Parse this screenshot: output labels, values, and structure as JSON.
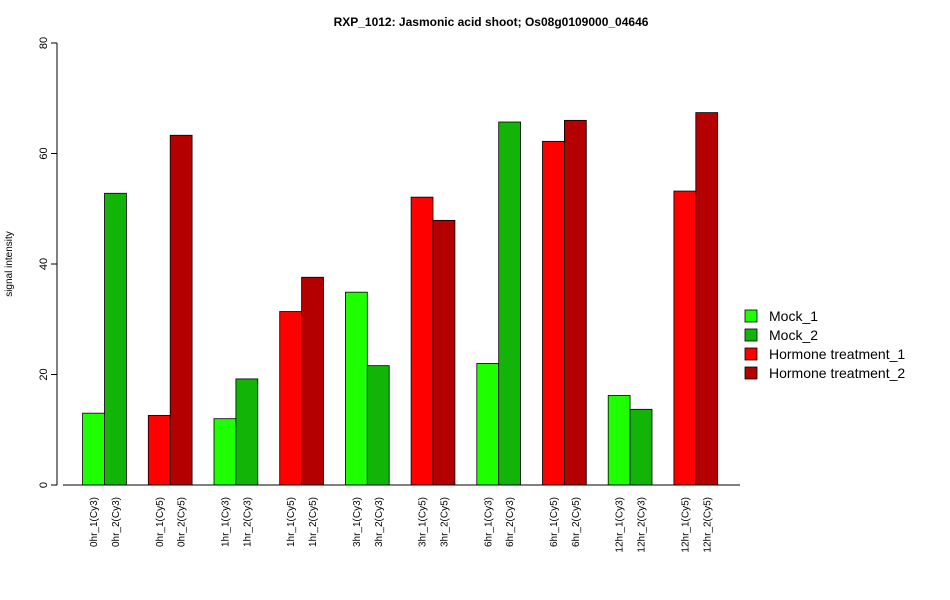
{
  "chart_data": {
    "type": "bar",
    "title": "RXP_1012: Jasmonic acid shoot; Os08g0109000_04646",
    "ylabel": "signal intensity",
    "xlabel": "",
    "ylim": [
      0,
      80
    ],
    "yticks": [
      0,
      20,
      40,
      60,
      80
    ],
    "grid": false,
    "legend_position": "right",
    "categories": [
      "0hr_1(Cy3)",
      "0hr_2(Cy3)",
      "0hr_1(Cy5)",
      "0hr_2(Cy5)",
      "1hr_1(Cy3)",
      "1hr_2(Cy3)",
      "1hr_1(Cy5)",
      "1hr_2(Cy5)",
      "3hr_1(Cy3)",
      "3hr_2(Cy3)",
      "3hr_1(Cy5)",
      "3hr_2(Cy5)",
      "6hr_1(Cy3)",
      "6hr_2(Cy3)",
      "6hr_1(Cy5)",
      "6hr_2(Cy5)",
      "12hr_1(Cy3)",
      "12hr_2(Cy3)",
      "12hr_1(Cy5)",
      "12hr_2(Cy5)"
    ],
    "values": [
      13.0,
      52.8,
      12.6,
      63.3,
      12.0,
      19.2,
      31.4,
      37.6,
      34.9,
      21.6,
      52.1,
      47.9,
      22.0,
      65.7,
      62.2,
      66.0,
      16.2,
      13.7,
      53.2,
      67.4
    ],
    "bar_series": [
      0,
      1,
      2,
      3,
      0,
      1,
      2,
      3,
      0,
      1,
      2,
      3,
      0,
      1,
      2,
      3,
      0,
      1,
      2,
      3
    ],
    "series": [
      {
        "name": "Mock_1",
        "color": "#1EFF00"
      },
      {
        "name": "Mock_2",
        "color": "#12B407"
      },
      {
        "name": "Hormone treatment_1",
        "color": "#FF0000"
      },
      {
        "name": "Hormone treatment_2",
        "color": "#B40000"
      }
    ]
  }
}
